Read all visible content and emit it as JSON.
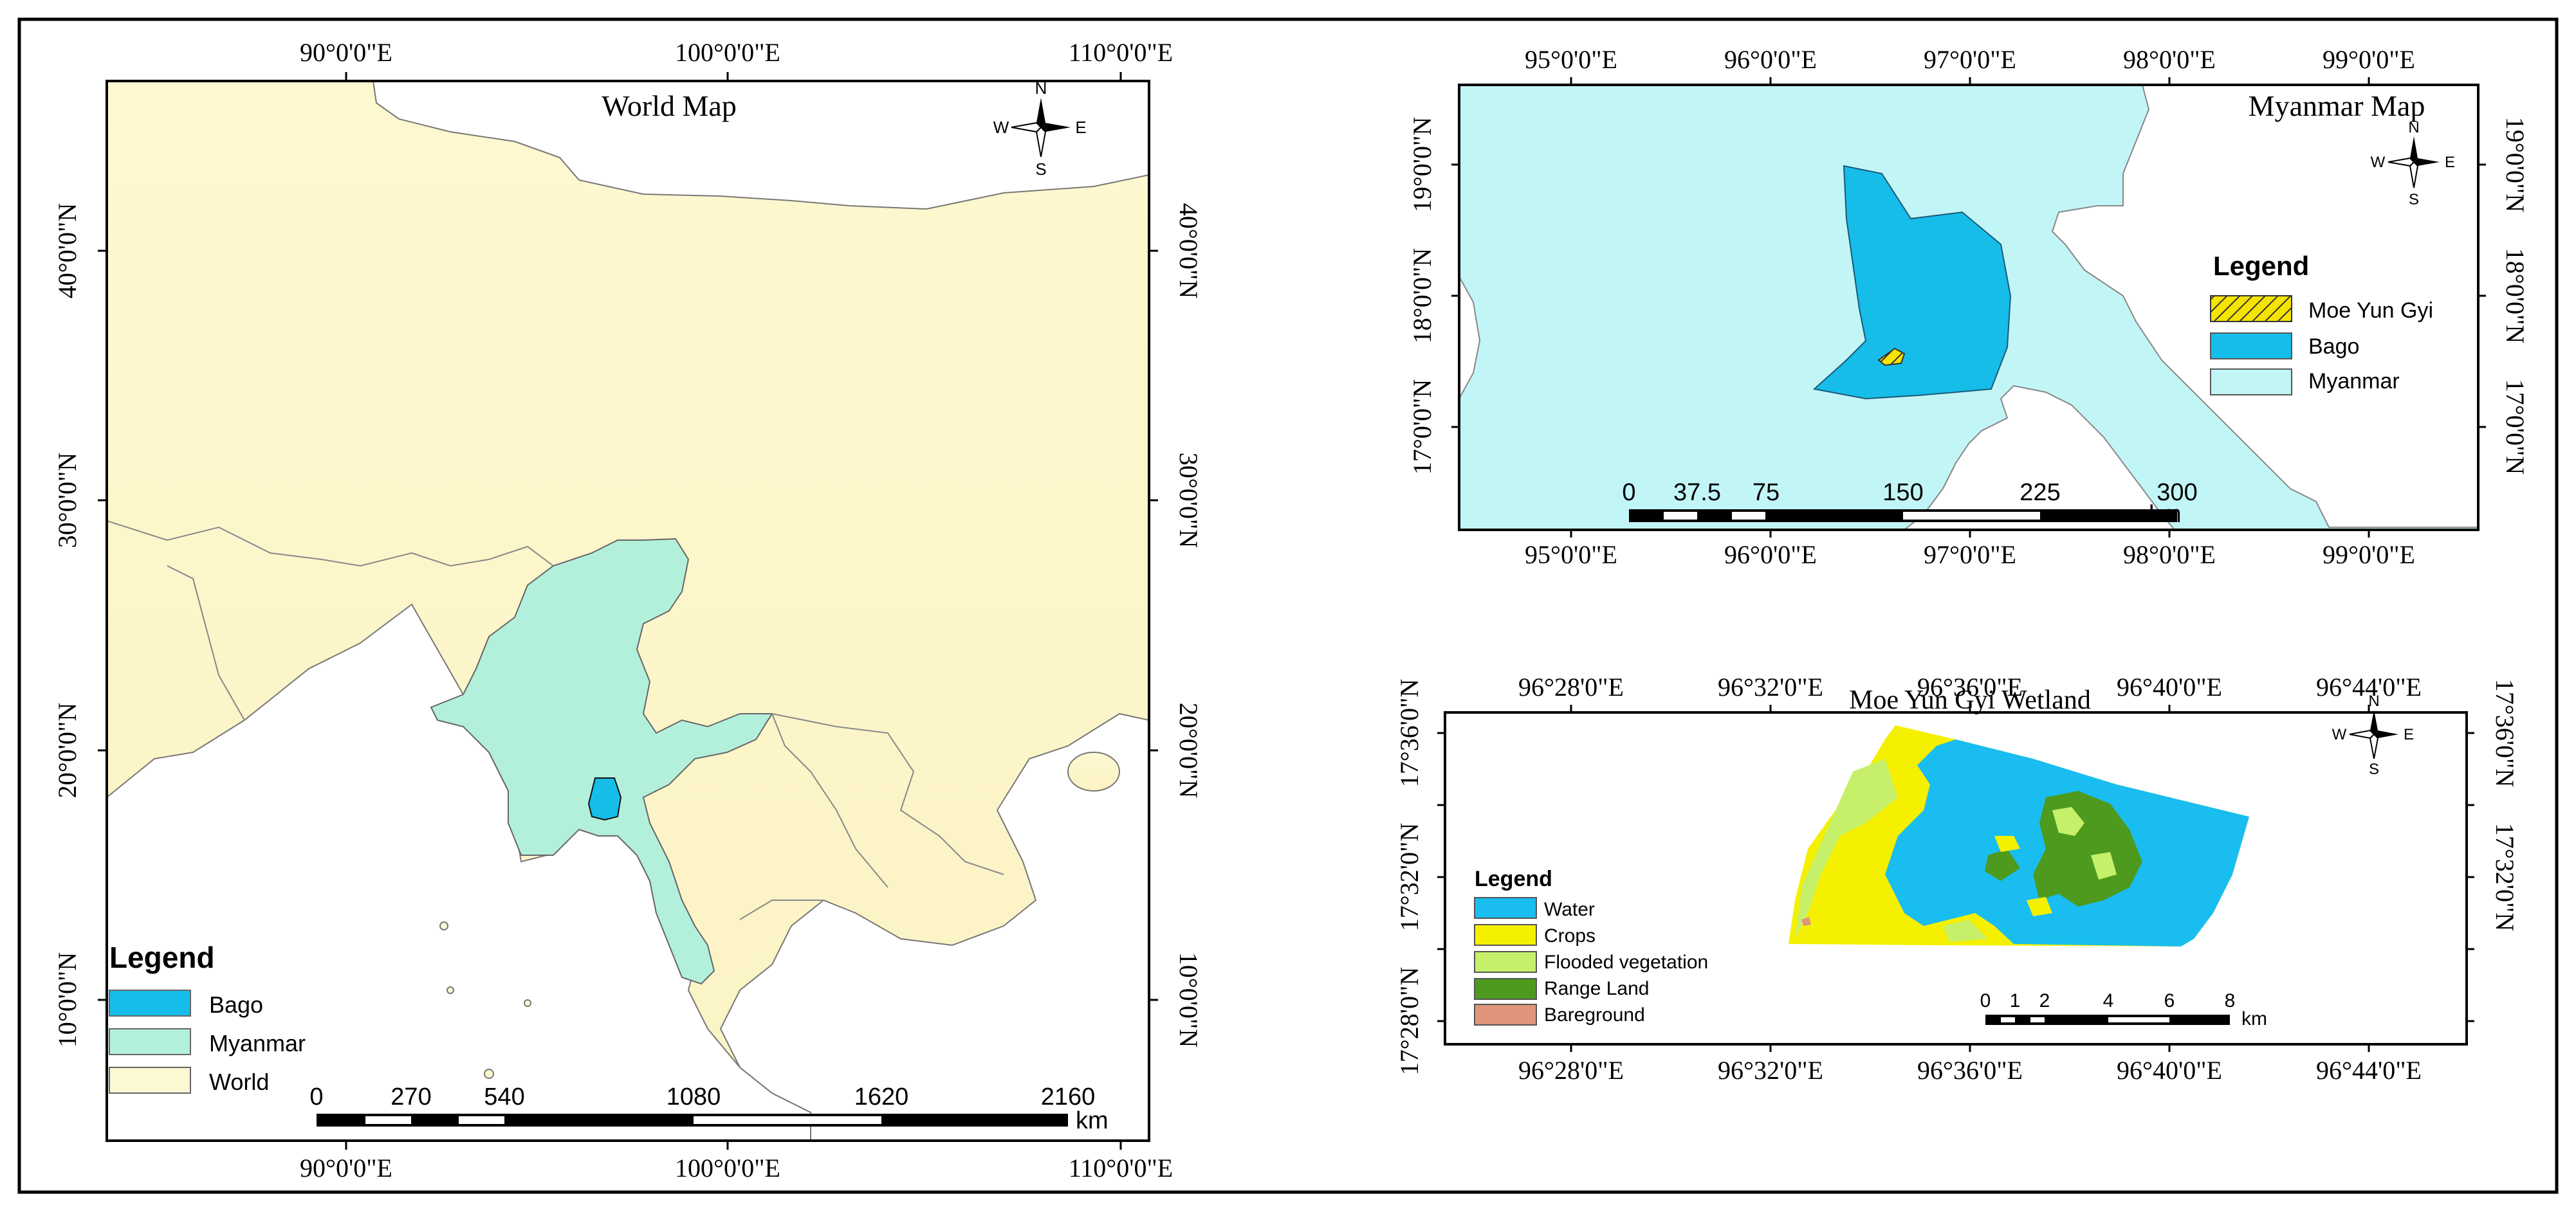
{
  "world": {
    "title": "World Map",
    "lon_labels": [
      "90°0'0\"E",
      "100°0'0\"E",
      "110°0'0\"E"
    ],
    "lat_labels": [
      "40°0'0\"N",
      "30°0'0\"N",
      "20°0'0\"N",
      "10°0'0\"N"
    ],
    "legend": {
      "title": "Legend",
      "items": [
        {
          "label": "Bago",
          "color": "#16bde8"
        },
        {
          "label": "Myanmar",
          "color": "#b3f0dc"
        },
        {
          "label": "World",
          "color": "#fcf8d2"
        }
      ]
    },
    "scale": {
      "ticks": [
        "0",
        "270",
        "540",
        "1080",
        "1620",
        "2160"
      ],
      "unit": "km"
    },
    "compass": {
      "n": "N",
      "s": "S",
      "e": "E",
      "w": "W"
    }
  },
  "myanmar": {
    "title": "Myanmar Map",
    "lon_labels": [
      "95°0'0\"E",
      "96°0'0\"E",
      "97°0'0\"E",
      "98°0'0\"E",
      "99°0'0\"E"
    ],
    "lat_labels": [
      "19°0'0\"N",
      "18°0'0\"N",
      "17°0'0\"N"
    ],
    "legend": {
      "title": "Legend",
      "items": [
        {
          "label": "Moe Yun Gyi",
          "color": "#f5e400",
          "pattern": "hatched"
        },
        {
          "label": "Bago",
          "color": "#16bde8"
        },
        {
          "label": "Myanmar",
          "color": "#c2f5f6"
        }
      ]
    },
    "scale": {
      "ticks": [
        "0",
        "37.5",
        "75",
        "150",
        "225",
        "300"
      ],
      "unit": "km"
    },
    "compass": {
      "n": "N",
      "s": "S",
      "e": "E",
      "w": "W"
    }
  },
  "wetland": {
    "title": "Moe Yun Gyi Wetland",
    "lon_labels": [
      "96°28'0\"E",
      "96°32'0\"E",
      "96°36'0\"E",
      "96°40'0\"E",
      "96°44'0\"E"
    ],
    "lat_labels": [
      "17°36'0\"N",
      "17°32'0\"N",
      "17°28'0\"N"
    ],
    "legend": {
      "title": "Legend",
      "items": [
        {
          "label": "Water",
          "color": "#19bdf0"
        },
        {
          "label": "Crops",
          "color": "#f5f000"
        },
        {
          "label": "Flooded vegetation",
          "color": "#c6f06a"
        },
        {
          "label": "Range Land",
          "color": "#4e9a1e"
        },
        {
          "label": "Bareground",
          "color": "#e0957a"
        }
      ]
    },
    "scale": {
      "ticks": [
        "0",
        "1",
        "2",
        "4",
        "6",
        "8"
      ],
      "unit": "km"
    },
    "compass": {
      "n": "N",
      "s": "S",
      "e": "E",
      "w": "W"
    }
  }
}
